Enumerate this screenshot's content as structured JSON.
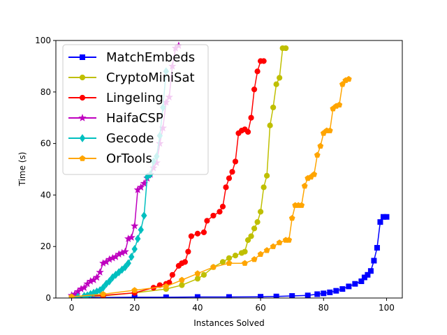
{
  "chart_data": {
    "type": "line",
    "title": "",
    "xlabel": "Instances Solved",
    "ylabel": "Time (s)",
    "xlim": [
      -5,
      105
    ],
    "ylim": [
      0,
      100
    ],
    "xticks": [
      0,
      20,
      40,
      60,
      80,
      100
    ],
    "yticks": [
      0,
      20,
      40,
      60,
      80,
      100
    ],
    "grid": false,
    "legend_position": "top-left",
    "series": [
      {
        "name": "MatchEmbeds",
        "color": "#0000ff",
        "marker": "square",
        "x": [
          0,
          10,
          20,
          30,
          40,
          50,
          60,
          65,
          70,
          75,
          78,
          80,
          82,
          84,
          86,
          88,
          90,
          92,
          93,
          94,
          95,
          96,
          97,
          98,
          99,
          100
        ],
        "y": [
          0.2,
          0.2,
          0.3,
          0.3,
          0.4,
          0.4,
          0.5,
          0.6,
          0.8,
          1.0,
          1.5,
          1.8,
          2.2,
          2.8,
          3.5,
          4.5,
          5.5,
          6.5,
          8,
          9,
          10.5,
          14.5,
          19.5,
          29.5,
          31.5,
          31.5
        ]
      },
      {
        "name": "CryptoMiniSat",
        "color": "#bfbf00",
        "marker": "circle",
        "x": [
          0,
          10,
          20,
          30,
          35,
          40,
          42,
          45,
          48,
          50,
          52,
          54,
          55,
          56,
          57,
          58,
          59,
          60,
          61,
          62,
          63,
          64,
          65,
          66,
          67,
          68
        ],
        "y": [
          0.3,
          0.8,
          2.0,
          3.5,
          5.0,
          7.5,
          9.0,
          12.0,
          14.0,
          15.5,
          16.5,
          17.5,
          18.0,
          22.5,
          24.0,
          27.0,
          29.5,
          33.5,
          43.0,
          47.5,
          67.0,
          74.0,
          83.0,
          85.5,
          97.0,
          97.0
        ]
      },
      {
        "name": "Lingeling",
        "color": "#ff0000",
        "marker": "circle",
        "x": [
          0,
          10,
          20,
          26,
          28,
          30,
          31,
          32,
          34,
          35,
          36,
          37,
          38,
          40,
          42,
          43,
          45,
          47,
          48,
          49,
          50,
          51,
          52,
          53,
          54,
          55,
          56,
          57,
          58,
          59,
          60,
          61
        ],
        "y": [
          0.5,
          1.0,
          2.0,
          4.0,
          5.0,
          5.5,
          6.0,
          9.0,
          12.5,
          13.5,
          14.0,
          18.0,
          24.0,
          25.0,
          25.5,
          30.0,
          32.0,
          33.5,
          35.5,
          43.0,
          46.5,
          49.0,
          53.0,
          64.0,
          65.0,
          65.5,
          64.5,
          70.0,
          81.0,
          88.0,
          92.0,
          92.0
        ]
      },
      {
        "name": "HaifaCSP",
        "color": "#bf00bf",
        "marker": "star",
        "x": [
          0,
          1,
          2,
          3,
          4,
          5,
          6,
          7,
          8,
          9,
          10,
          11,
          12,
          13,
          14,
          15,
          16,
          17,
          18,
          19,
          20,
          21,
          22,
          23,
          24,
          25,
          26,
          27,
          28,
          29,
          30,
          31,
          32,
          33,
          34
        ],
        "y": [
          1.0,
          1.5,
          2.5,
          3.5,
          4.0,
          5.5,
          6.5,
          7.0,
          8.0,
          10.0,
          13.5,
          14.0,
          15.0,
          15.5,
          16.0,
          17.0,
          17.5,
          18.0,
          23.0,
          23.5,
          28.0,
          42.0,
          43.0,
          44.5,
          46.5,
          48.0,
          50.5,
          52.5,
          60.0,
          66.0,
          76.0,
          78.0,
          90.0,
          97.0,
          98.0
        ]
      },
      {
        "name": "Gecode",
        "color": "#00bfbf",
        "marker": "diamond",
        "x": [
          0,
          2,
          4,
          5,
          6,
          7,
          8,
          9,
          10,
          11,
          12,
          13,
          14,
          15,
          16,
          17,
          18,
          19,
          20,
          21,
          22,
          23,
          24,
          25,
          26,
          27,
          28,
          29,
          30
        ],
        "y": [
          0.3,
          0.5,
          0.8,
          1.0,
          1.5,
          2.0,
          2.5,
          3.0,
          4.0,
          5.5,
          6.5,
          8.0,
          9.0,
          10.0,
          11.0,
          12.0,
          13.5,
          16.0,
          19.0,
          23.0,
          26.5,
          32.0,
          47.0,
          48.0,
          53.0,
          55.0,
          63.0,
          74.0,
          88.0
        ]
      },
      {
        "name": "OrTools",
        "color": "#ffa500",
        "marker": "pentagon",
        "x": [
          0,
          10,
          20,
          30,
          35,
          40,
          45,
          50,
          55,
          58,
          60,
          62,
          64,
          66,
          68,
          69,
          70,
          71,
          72,
          73,
          74,
          75,
          76,
          77,
          78,
          79,
          80,
          81,
          82,
          83,
          84,
          85,
          86,
          87,
          88
        ],
        "y": [
          0.5,
          1.5,
          3.0,
          4.5,
          7.0,
          9.5,
          12.0,
          13.5,
          13.5,
          15.0,
          17.0,
          18.5,
          20.0,
          21.5,
          22.5,
          22.5,
          31.0,
          36.0,
          36.0,
          36.0,
          43.5,
          46.5,
          47.0,
          48.0,
          55.5,
          59.0,
          64.0,
          65.0,
          65.0,
          73.5,
          74.5,
          75.0,
          83.0,
          84.5,
          85.0
        ]
      }
    ]
  }
}
